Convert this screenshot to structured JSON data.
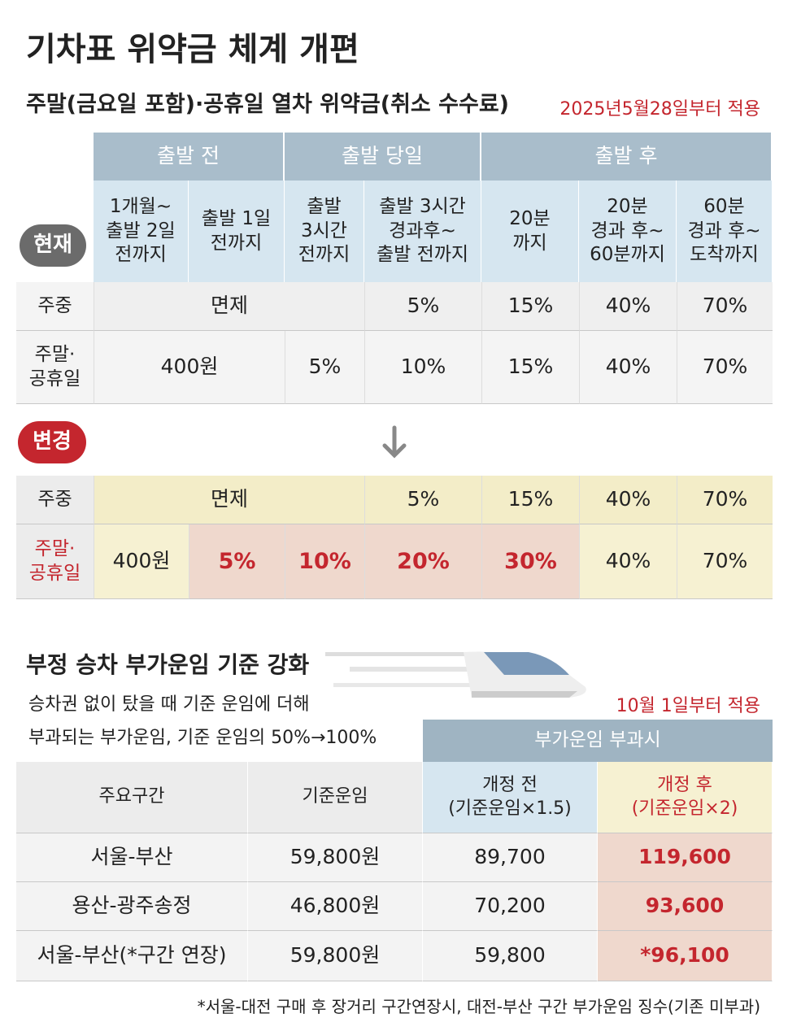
{
  "title": "기차표 위약금 체계 개편",
  "fee_table": {
    "title": "주말(금요일 포함)·공휴일 열차 위약금(취소 수수료)",
    "effective": "2025년5월28일부터 적용",
    "groups": [
      "출발 전",
      "출발 당일",
      "출발 후"
    ],
    "columns": [
      "1개월~\n출발 2일\n전까지",
      "출발 1일\n전까지",
      "출발\n3시간\n전까지",
      "출발 3시간\n경과후~\n출발 전까지",
      "20분\n까지",
      "20분\n경과 후~\n60분까지",
      "60분\n경과 후~\n도착까지"
    ],
    "current": {
      "label": "현재",
      "rows": [
        {
          "label": "주중",
          "cells": [
            "면제",
            "5%",
            "15%",
            "40%",
            "70%"
          ]
        },
        {
          "label": "주말·\n공휴일",
          "cells": [
            "400원",
            "5%",
            "10%",
            "15%",
            "40%",
            "70%"
          ]
        }
      ]
    },
    "changed": {
      "label": "변경",
      "rows": [
        {
          "label": "주중",
          "cells": [
            "면제",
            "5%",
            "15%",
            "40%",
            "70%"
          ]
        },
        {
          "label": "주말·\n공휴일",
          "cells": [
            "400원",
            "5%",
            "10%",
            "20%",
            "30%",
            "40%",
            "70%"
          ]
        }
      ]
    }
  },
  "surcharge": {
    "title": "부정 승차 부가운임 기준 강화",
    "description": [
      "승차권 없이 탔을 때 기준 운임에 더해",
      "부과되는 부가운임, 기준 운임의 50%→100%"
    ],
    "effective": "10월 1일부터 적용",
    "group": "부가운임 부과시",
    "headers": [
      "주요구간",
      "기준운임",
      "개정 전\n(기준운임×1.5)",
      "개정 후\n(기준운임×2)"
    ],
    "rows": [
      [
        "서울-부산",
        "59,800원",
        "89,700",
        "119,600"
      ],
      [
        "용산-광주송정",
        "46,800원",
        "70,200",
        "93,600"
      ],
      [
        "서울-부산(*구간 연장)",
        "59,800원",
        "59,800",
        "*96,100"
      ]
    ],
    "footnote": "*서울-대전 구매 후 장거리 구간연장시, 대전-부산 구간 부가운임 징수(기존 미부과)"
  }
}
